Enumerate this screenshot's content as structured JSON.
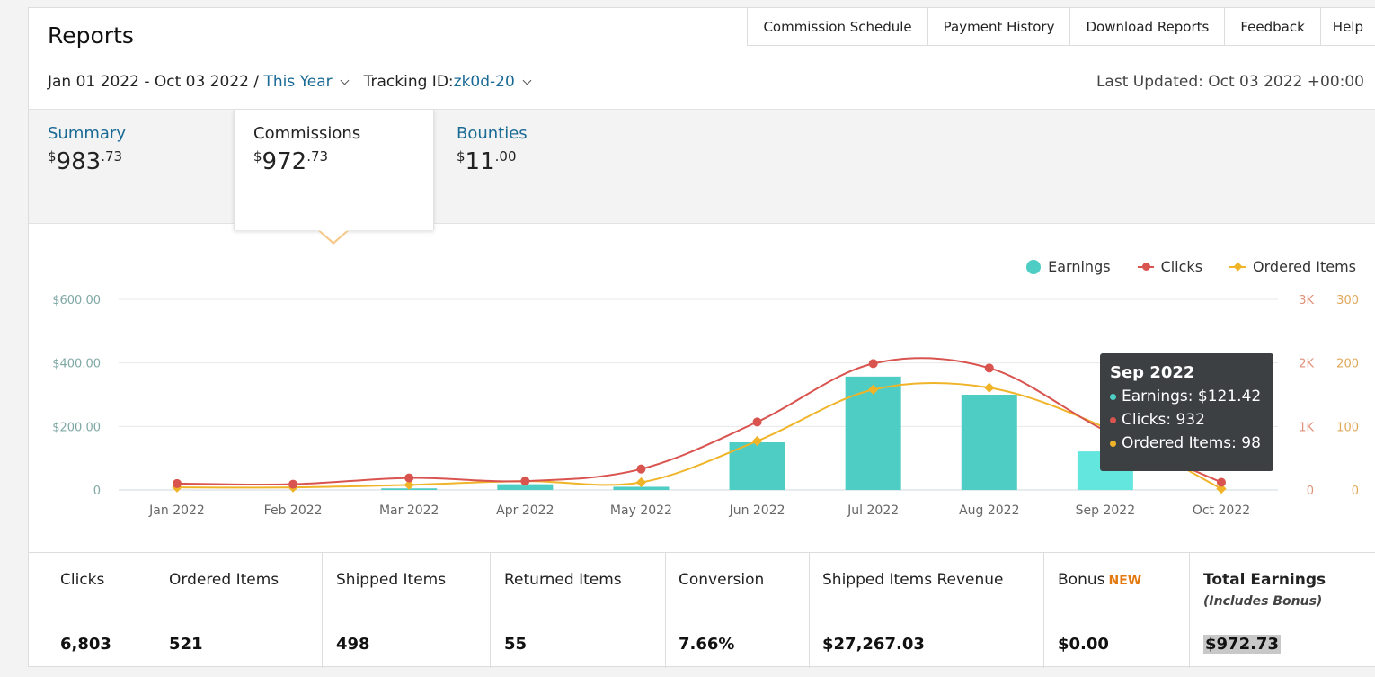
{
  "page_title": "Reports",
  "top_nav": [
    "Commission Schedule",
    "Payment History",
    "Download Reports",
    "Feedback",
    "Help"
  ],
  "filters": {
    "date_range": "Jan 01 2022 - Oct 03 2022 / ",
    "period": "This Year",
    "tracking_label": "Tracking ID: ",
    "tracking_id": "zk0d-20",
    "last_updated": "Last Updated: Oct 03 2022 +00:00"
  },
  "tabs": {
    "summary": {
      "label": "Summary",
      "currency": "$",
      "whole": "983",
      "cents": ".73"
    },
    "commissions": {
      "label": "Commissions",
      "currency": "$",
      "whole": "972",
      "cents": ".73"
    },
    "bounties": {
      "label": "Bounties",
      "currency": "$",
      "whole": "11",
      "cents": ".00"
    }
  },
  "legend": {
    "earnings": "Earnings",
    "clicks": "Clicks",
    "ordered": "Ordered Items"
  },
  "colors": {
    "earnings": "#4ecdc4",
    "clicks": "#d9534f",
    "ordered": "#f0b429",
    "link": "#1a6a96"
  },
  "tooltip": {
    "title": "Sep 2022",
    "earnings": "Earnings: $121.42",
    "clicks": "Clicks: 932",
    "ordered": "Ordered Items: 98"
  },
  "chart_data": {
    "type": "bar",
    "categories": [
      "Jan 2022",
      "Feb 2022",
      "Mar 2022",
      "Apr 2022",
      "May 2022",
      "Jun 2022",
      "Jul 2022",
      "Aug 2022",
      "Sep 2022",
      "Oct 2022"
    ],
    "series": [
      {
        "name": "Earnings",
        "type": "bar",
        "axis": "left",
        "values": [
          0,
          0,
          5,
          18,
          10,
          150,
          357,
          300,
          121.42,
          0
        ]
      },
      {
        "name": "Clicks",
        "type": "line",
        "axis": "right1",
        "values": [
          100,
          90,
          190,
          140,
          330,
          1070,
          1990,
          1920,
          932,
          120
        ]
      },
      {
        "name": "Ordered Items",
        "type": "line",
        "axis": "right2",
        "values": [
          4,
          4,
          8,
          14,
          12,
          77,
          158,
          161,
          98,
          2
        ]
      }
    ],
    "y_left": {
      "ticks": [
        "0",
        "$200.00",
        "$400.00",
        "$600.00"
      ],
      "range": [
        0,
        600
      ]
    },
    "y_right1": {
      "ticks": [
        "0",
        "1K",
        "2K",
        "3K"
      ],
      "range": [
        0,
        3000
      ]
    },
    "y_right2": {
      "ticks": [
        "0",
        "100",
        "200",
        "300"
      ],
      "range": [
        0,
        300
      ]
    },
    "grid": true,
    "legend_position": "top-right"
  },
  "stats": [
    {
      "label": "Clicks",
      "value": "6,803"
    },
    {
      "label": "Ordered Items",
      "value": "521"
    },
    {
      "label": "Shipped Items",
      "value": "498"
    },
    {
      "label": "Returned Items",
      "value": "55"
    },
    {
      "label": "Conversion",
      "value": "7.66%"
    },
    {
      "label": "Shipped Items Revenue",
      "value": "$27,267.03"
    },
    {
      "label": "Bonus",
      "badge": "NEW",
      "value": "$0.00"
    },
    {
      "label": "Total Earnings",
      "sub": "(Includes Bonus)",
      "value": "$972.73"
    }
  ]
}
